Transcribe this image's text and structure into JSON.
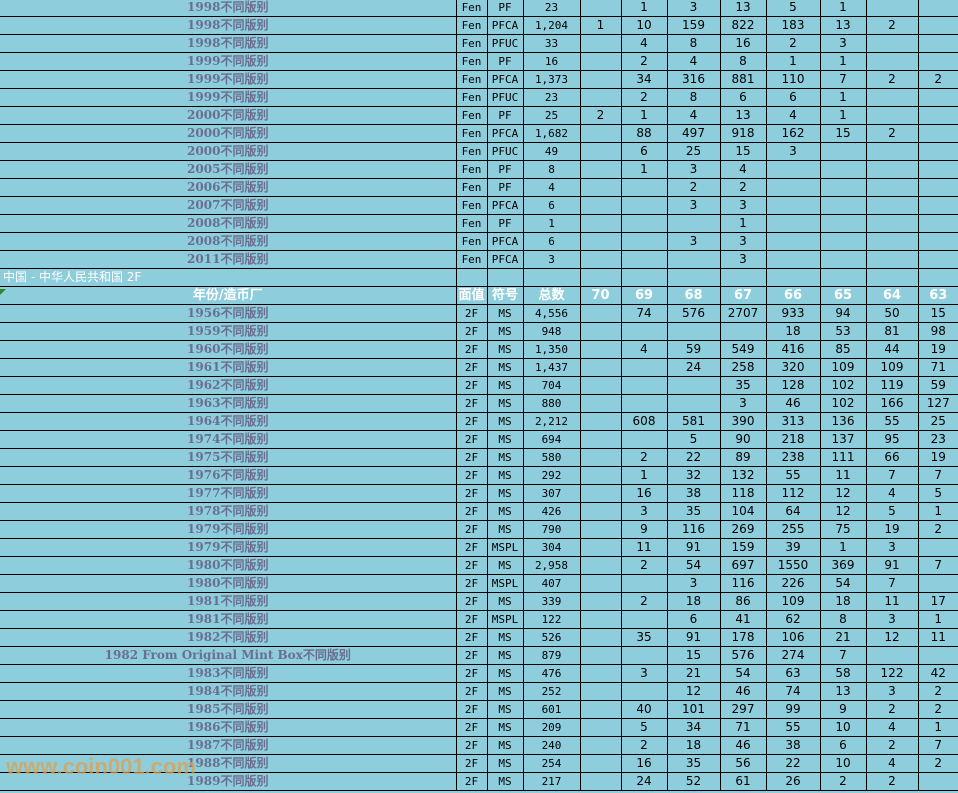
{
  "columns": [
    "年份/造币厂",
    "面值",
    "符号",
    "总数",
    "70",
    "69",
    "68",
    "67",
    "66",
    "65",
    "64",
    "63"
  ],
  "fen_rows": [
    {
      "label": "1998不同版别",
      "denom": "Fen",
      "sym": "PF",
      "total": "23",
      "counts": [
        "",
        "1",
        "3",
        "13",
        "5",
        "1",
        "",
        ""
      ]
    },
    {
      "label": "1998不同版别",
      "denom": "Fen",
      "sym": "PFCA",
      "total": "1,204",
      "counts": [
        "1",
        "10",
        "159",
        "822",
        "183",
        "13",
        "2",
        ""
      ]
    },
    {
      "label": "1998不同版别",
      "denom": "Fen",
      "sym": "PFUC",
      "total": "33",
      "counts": [
        "",
        "4",
        "8",
        "16",
        "2",
        "3",
        "",
        ""
      ]
    },
    {
      "label": "1999不同版别",
      "denom": "Fen",
      "sym": "PF",
      "total": "16",
      "counts": [
        "",
        "2",
        "4",
        "8",
        "1",
        "1",
        "",
        ""
      ]
    },
    {
      "label": "1999不同版别",
      "denom": "Fen",
      "sym": "PFCA",
      "total": "1,373",
      "counts": [
        "",
        "34",
        "316",
        "881",
        "110",
        "7",
        "2",
        "2"
      ]
    },
    {
      "label": "1999不同版别",
      "denom": "Fen",
      "sym": "PFUC",
      "total": "23",
      "counts": [
        "",
        "2",
        "8",
        "6",
        "6",
        "1",
        "",
        ""
      ]
    },
    {
      "label": "2000不同版别",
      "denom": "Fen",
      "sym": "PF",
      "total": "25",
      "counts": [
        "2",
        "1",
        "4",
        "13",
        "4",
        "1",
        "",
        ""
      ]
    },
    {
      "label": "2000不同版别",
      "denom": "Fen",
      "sym": "PFCA",
      "total": "1,682",
      "counts": [
        "",
        "88",
        "497",
        "918",
        "162",
        "15",
        "2",
        ""
      ]
    },
    {
      "label": "2000不同版别",
      "denom": "Fen",
      "sym": "PFUC",
      "total": "49",
      "counts": [
        "",
        "6",
        "25",
        "15",
        "3",
        "",
        "",
        ""
      ]
    },
    {
      "label": "2005不同版别",
      "denom": "Fen",
      "sym": "PF",
      "total": "8",
      "counts": [
        "",
        "1",
        "3",
        "4",
        "",
        "",
        "",
        ""
      ]
    },
    {
      "label": "2006不同版别",
      "denom": "Fen",
      "sym": "PF",
      "total": "4",
      "counts": [
        "",
        "",
        "2",
        "2",
        "",
        "",
        "",
        ""
      ]
    },
    {
      "label": "2007不同版别",
      "denom": "Fen",
      "sym": "PFCA",
      "total": "6",
      "counts": [
        "",
        "",
        "3",
        "3",
        "",
        "",
        "",
        ""
      ]
    },
    {
      "label": "2008不同版别",
      "denom": "Fen",
      "sym": "PF",
      "total": "1",
      "counts": [
        "",
        "",
        "",
        "1",
        "",
        "",
        "",
        ""
      ]
    },
    {
      "label": "2008不同版别",
      "denom": "Fen",
      "sym": "PFCA",
      "total": "6",
      "counts": [
        "",
        "",
        "3",
        "3",
        "",
        "",
        "",
        ""
      ]
    },
    {
      "label": "2011不同版别",
      "denom": "Fen",
      "sym": "PFCA",
      "total": "3",
      "counts": [
        "",
        "",
        "",
        "3",
        "",
        "",
        "",
        ""
      ]
    }
  ],
  "section_title": "中国 - 中华人民共和国 2F",
  "rows_2f": [
    {
      "label": "1956不同版别",
      "denom": "2F",
      "sym": "MS",
      "total": "4,556",
      "counts": [
        "",
        "74",
        "576",
        "2707",
        "933",
        "94",
        "50",
        "15"
      ]
    },
    {
      "label": "1959不同版别",
      "denom": "2F",
      "sym": "MS",
      "total": "948",
      "counts": [
        "",
        "",
        "",
        "",
        "18",
        "53",
        "81",
        "98"
      ]
    },
    {
      "label": "1960不同版别",
      "denom": "2F",
      "sym": "MS",
      "total": "1,350",
      "counts": [
        "",
        "4",
        "59",
        "549",
        "416",
        "85",
        "44",
        "19"
      ]
    },
    {
      "label": "1961不同版别",
      "denom": "2F",
      "sym": "MS",
      "total": "1,437",
      "counts": [
        "",
        "",
        "24",
        "258",
        "320",
        "109",
        "109",
        "71"
      ]
    },
    {
      "label": "1962不同版别",
      "denom": "2F",
      "sym": "MS",
      "total": "704",
      "counts": [
        "",
        "",
        "",
        "35",
        "128",
        "102",
        "119",
        "59"
      ]
    },
    {
      "label": "1963不同版别",
      "denom": "2F",
      "sym": "MS",
      "total": "880",
      "counts": [
        "",
        "",
        "",
        "3",
        "46",
        "102",
        "166",
        "127"
      ]
    },
    {
      "label": "1964不同版别",
      "denom": "2F",
      "sym": "MS",
      "total": "2,212",
      "counts": [
        "",
        "608",
        "581",
        "390",
        "313",
        "136",
        "55",
        "25"
      ]
    },
    {
      "label": "1974不同版别",
      "denom": "2F",
      "sym": "MS",
      "total": "694",
      "counts": [
        "",
        "",
        "5",
        "90",
        "218",
        "137",
        "95",
        "23"
      ]
    },
    {
      "label": "1975不同版别",
      "denom": "2F",
      "sym": "MS",
      "total": "580",
      "counts": [
        "",
        "2",
        "22",
        "89",
        "238",
        "111",
        "66",
        "19"
      ]
    },
    {
      "label": "1976不同版别",
      "denom": "2F",
      "sym": "MS",
      "total": "292",
      "counts": [
        "",
        "1",
        "32",
        "132",
        "55",
        "11",
        "7",
        "7"
      ]
    },
    {
      "label": "1977不同版别",
      "denom": "2F",
      "sym": "MS",
      "total": "307",
      "counts": [
        "",
        "16",
        "38",
        "118",
        "112",
        "12",
        "4",
        "5"
      ]
    },
    {
      "label": "1978不同版别",
      "denom": "2F",
      "sym": "MS",
      "total": "426",
      "counts": [
        "",
        "3",
        "35",
        "104",
        "64",
        "12",
        "5",
        "1"
      ]
    },
    {
      "label": "1979不同版别",
      "denom": "2F",
      "sym": "MS",
      "total": "790",
      "counts": [
        "",
        "9",
        "116",
        "269",
        "255",
        "75",
        "19",
        "2"
      ]
    },
    {
      "label": "1979不同版别",
      "denom": "2F",
      "sym": "MSPL",
      "total": "304",
      "counts": [
        "",
        "11",
        "91",
        "159",
        "39",
        "1",
        "3",
        ""
      ]
    },
    {
      "label": "1980不同版别",
      "denom": "2F",
      "sym": "MS",
      "total": "2,958",
      "counts": [
        "",
        "2",
        "54",
        "697",
        "1550",
        "369",
        "91",
        "7"
      ]
    },
    {
      "label": "1980不同版别",
      "denom": "2F",
      "sym": "MSPL",
      "total": "407",
      "counts": [
        "",
        "",
        "3",
        "116",
        "226",
        "54",
        "7",
        ""
      ]
    },
    {
      "label": "1981不同版别",
      "denom": "2F",
      "sym": "MS",
      "total": "339",
      "counts": [
        "",
        "2",
        "18",
        "86",
        "109",
        "18",
        "11",
        "17"
      ]
    },
    {
      "label": "1981不同版别",
      "denom": "2F",
      "sym": "MSPL",
      "total": "122",
      "counts": [
        "",
        "",
        "6",
        "41",
        "62",
        "8",
        "3",
        "1"
      ]
    },
    {
      "label": "1982不同版别",
      "denom": "2F",
      "sym": "MS",
      "total": "526",
      "counts": [
        "",
        "35",
        "91",
        "178",
        "106",
        "21",
        "12",
        "11"
      ]
    },
    {
      "label": "1982 From Original Mint Box不同版别",
      "denom": "2F",
      "sym": "MS",
      "total": "879",
      "counts": [
        "",
        "",
        "15",
        "576",
        "274",
        "7",
        "",
        ""
      ]
    },
    {
      "label": "1983不同版别",
      "denom": "2F",
      "sym": "MS",
      "total": "476",
      "counts": [
        "",
        "3",
        "21",
        "54",
        "63",
        "58",
        "122",
        "42"
      ]
    },
    {
      "label": "1984不同版别",
      "denom": "2F",
      "sym": "MS",
      "total": "252",
      "counts": [
        "",
        "",
        "12",
        "46",
        "74",
        "13",
        "3",
        "2"
      ]
    },
    {
      "label": "1985不同版别",
      "denom": "2F",
      "sym": "MS",
      "total": "601",
      "counts": [
        "",
        "40",
        "101",
        "297",
        "99",
        "9",
        "2",
        "2"
      ]
    },
    {
      "label": "1986不同版别",
      "denom": "2F",
      "sym": "MS",
      "total": "209",
      "counts": [
        "",
        "5",
        "34",
        "71",
        "55",
        "10",
        "4",
        "1"
      ]
    },
    {
      "label": "1987不同版别",
      "denom": "2F",
      "sym": "MS",
      "total": "240",
      "counts": [
        "",
        "2",
        "18",
        "46",
        "38",
        "6",
        "2",
        "7"
      ]
    },
    {
      "label": "1988不同版别",
      "denom": "2F",
      "sym": "MS",
      "total": "254",
      "counts": [
        "",
        "16",
        "35",
        "56",
        "22",
        "10",
        "4",
        "2"
      ]
    },
    {
      "label": "1989不同版别",
      "denom": "2F",
      "sym": "MS",
      "total": "217",
      "counts": [
        "",
        "24",
        "52",
        "61",
        "26",
        "2",
        "2",
        ""
      ]
    }
  ],
  "watermark": "www.coin001.com",
  "colors": {
    "background": "#8ECDDC",
    "label_text": "#6A6F8E",
    "header_text": "#FFFFFF",
    "watermark": "#DEA050"
  }
}
